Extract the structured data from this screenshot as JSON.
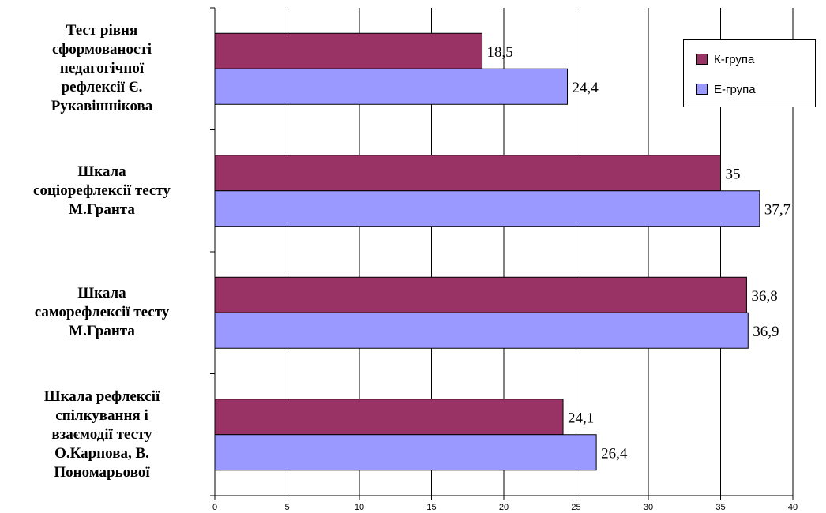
{
  "chart_data": {
    "type": "bar",
    "orientation": "horizontal",
    "categories": [
      "Тест рівня\nсформованості\nпедагогічної\nрефлексії Є.\nРукавішнікова",
      "Шкала\nсоціорефлексії тесту\nМ.Гранта",
      "Шкала\nсаморефлексії тесту\nМ.Гранта",
      "Шкала  рефлексії\nспілкування і\nвзаємодії тесту\nО.Карпова, В.\nПономарьової"
    ],
    "series": [
      {
        "name": "К-група",
        "color": "#993366",
        "values": [
          18.5,
          35,
          36.8,
          24.1
        ],
        "labels": [
          "18,5",
          "35",
          "36,8",
          "24,1"
        ]
      },
      {
        "name": "Е-група",
        "color": "#9999ff",
        "values": [
          24.4,
          37.7,
          36.9,
          26.4
        ],
        "labels": [
          "24,4",
          "37,7",
          "36,9",
          "26,4"
        ]
      }
    ],
    "xlim": [
      0,
      40
    ],
    "xticks": [
      0,
      5,
      10,
      15,
      20,
      25,
      30,
      35,
      40
    ],
    "grid": true,
    "legend_position": "top-right"
  }
}
